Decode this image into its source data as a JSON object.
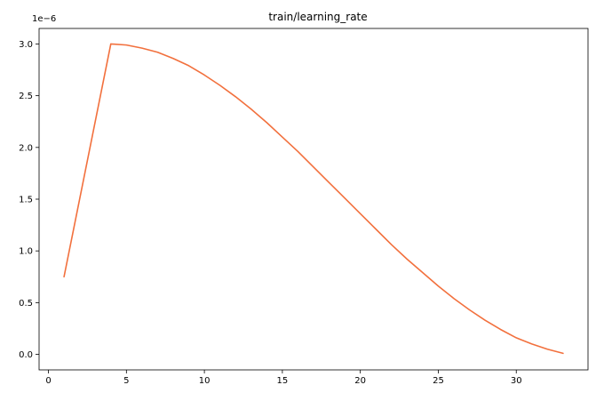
{
  "chart_data": {
    "type": "line",
    "title": "train/learning_rate",
    "xlabel": "",
    "ylabel": "",
    "y_scale_label": "1e−6",
    "xlim": [
      -0.6,
      34.6
    ],
    "ylim": [
      -0.15,
      3.15
    ],
    "x_ticks": [
      0,
      5,
      10,
      15,
      20,
      25,
      30
    ],
    "y_ticks": [
      0.0,
      0.5,
      1.0,
      1.5,
      2.0,
      2.5,
      3.0
    ],
    "x_tick_labels": [
      "0",
      "5",
      "10",
      "15",
      "20",
      "25",
      "30"
    ],
    "y_tick_labels": [
      "0.0",
      "0.5",
      "1.0",
      "1.5",
      "2.0",
      "2.5",
      "3.0"
    ],
    "grid": false,
    "legend": "none",
    "series": [
      {
        "color": "#f2703d",
        "x": [
          1,
          4,
          5,
          6,
          7,
          8,
          9,
          10,
          11,
          12,
          13,
          14,
          15,
          16,
          17,
          18,
          19,
          20,
          21,
          22,
          23,
          24,
          25,
          26,
          27,
          28,
          29,
          30,
          31,
          32,
          33
        ],
        "y": [
          0.75,
          3.0,
          2.99,
          2.96,
          2.92,
          2.86,
          2.79,
          2.7,
          2.6,
          2.49,
          2.37,
          2.24,
          2.1,
          1.96,
          1.81,
          1.66,
          1.51,
          1.36,
          1.21,
          1.06,
          0.92,
          0.79,
          0.66,
          0.54,
          0.43,
          0.33,
          0.24,
          0.16,
          0.1,
          0.05,
          0.01
        ]
      }
    ]
  }
}
